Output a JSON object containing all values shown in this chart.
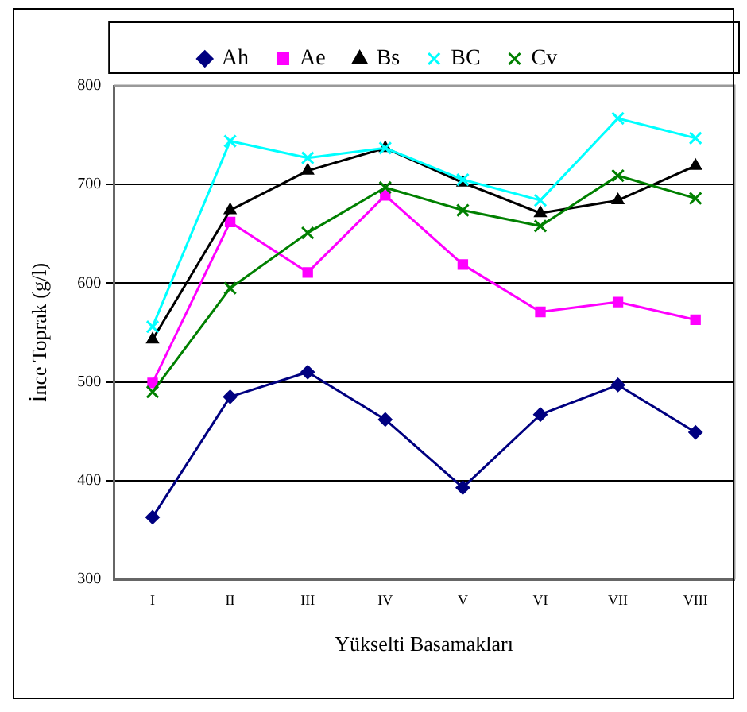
{
  "chart_data": {
    "type": "line",
    "xlabel": "Yükselti Basamakları",
    "ylabel": "İnce Toprak (g/l)",
    "categories": [
      "I",
      "II",
      "III",
      "IV",
      "V",
      "VI",
      "VII",
      "VIII"
    ],
    "series": [
      {
        "name": "Ah",
        "color": "#000080",
        "marker": "diamond",
        "values": [
          363,
          485,
          510,
          462,
          393,
          467,
          497,
          449
        ]
      },
      {
        "name": "Ae",
        "color": "#ff00ff",
        "marker": "square",
        "values": [
          499,
          662,
          611,
          689,
          619,
          571,
          581,
          563
        ]
      },
      {
        "name": "Bs",
        "color": "#000000",
        "marker": "triangle",
        "values": [
          543,
          674,
          714,
          737,
          702,
          671,
          684,
          719
        ]
      },
      {
        "name": "BC",
        "color": "#00ffff",
        "marker": "cross",
        "values": [
          556,
          744,
          727,
          737,
          705,
          684,
          767,
          747
        ]
      },
      {
        "name": "Cv",
        "color": "#008000",
        "marker": "cross",
        "values": [
          490,
          595,
          651,
          697,
          674,
          658,
          709,
          686
        ]
      }
    ],
    "ylim": [
      300,
      800
    ],
    "yticks": [
      300,
      400,
      500,
      600,
      700,
      800
    ],
    "grid": "y",
    "legend": "top",
    "line_style": "solid"
  }
}
